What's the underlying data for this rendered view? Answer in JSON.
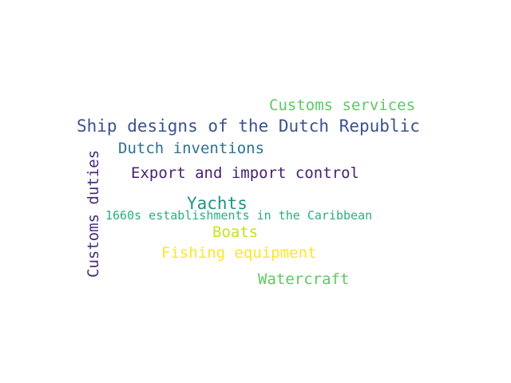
{
  "words": [
    {
      "text": "Customs services",
      "color": "#5ec962"
    },
    {
      "text": "Ship designs of the Dutch Republic",
      "color": "#3b528b"
    },
    {
      "text": "Dutch inventions",
      "color": "#2c728e"
    },
    {
      "text": "Export and import control",
      "color": "#481f70"
    },
    {
      "text": "Yachts",
      "color": "#21918c"
    },
    {
      "text": "1660s establishments in the Caribbean",
      "color": "#28ae80"
    },
    {
      "text": "Boats",
      "color": "#c8e020"
    },
    {
      "text": "Fishing equipment",
      "color": "#fde725"
    },
    {
      "text": "Watercraft",
      "color": "#5ec962"
    },
    {
      "text": "Customs duties",
      "color": "#472d7b"
    }
  ]
}
